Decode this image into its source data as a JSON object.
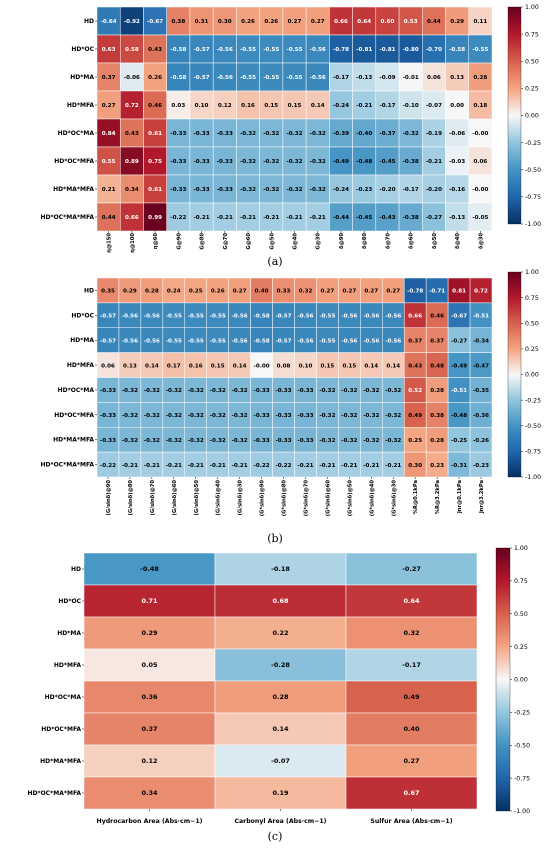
{
  "colorbar": {
    "min": -1.0,
    "max": 1.0,
    "ticks": [
      "1.00",
      "0.75",
      "0.50",
      "0.25",
      "0.00",
      "-0.25",
      "-0.50",
      "-0.75",
      "-1.00"
    ],
    "colormap": "RdBu_r",
    "colors": {
      "low": "#053061",
      "high": "#67001f",
      "mid": "#f7f7f7"
    }
  },
  "chart_data": [
    {
      "type": "heatmap",
      "caption": "(a)",
      "rows": [
        "HD",
        "HD*OC",
        "HD*MA",
        "HD*MFA",
        "HD*OC*MA",
        "HD*OC*MFA",
        "HD*MA*MFA",
        "HD*OC*MA*MFA"
      ],
      "columns": [
        "η@150",
        "η@100",
        "η@60",
        "G@90",
        "G@80",
        "G@70",
        "G@60",
        "G@50",
        "G@40",
        "G@30",
        "δ@90",
        "δ@80",
        "δ@70",
        "δ@60",
        "δ@50",
        "δ@40",
        "δ@30"
      ],
      "values": [
        [
          -0.64,
          -0.92,
          -0.67,
          0.38,
          0.31,
          0.3,
          0.26,
          0.26,
          0.27,
          0.27,
          0.66,
          0.64,
          0.6,
          0.53,
          0.44,
          0.29,
          0.11
        ],
        [
          0.63,
          0.58,
          0.43,
          -0.58,
          -0.57,
          -0.56,
          -0.55,
          -0.55,
          -0.55,
          -0.56,
          -0.78,
          -0.81,
          -0.81,
          -0.8,
          -0.7,
          -0.58,
          -0.55
        ],
        [
          0.37,
          -0.06,
          0.26,
          -0.58,
          -0.57,
          -0.56,
          -0.55,
          -0.55,
          -0.55,
          -0.56,
          -0.17,
          -0.13,
          -0.09,
          -0.01,
          0.06,
          0.13,
          0.28
        ],
        [
          0.27,
          0.72,
          0.46,
          0.03,
          0.1,
          0.12,
          0.16,
          0.15,
          0.15,
          0.14,
          -0.24,
          -0.21,
          -0.17,
          -0.1,
          -0.07,
          0.0,
          0.18
        ],
        [
          0.84,
          0.43,
          0.61,
          -0.33,
          -0.33,
          -0.33,
          -0.32,
          -0.32,
          -0.32,
          -0.32,
          -0.39,
          -0.4,
          -0.37,
          -0.32,
          -0.19,
          -0.06,
          -0.0
        ],
        [
          0.55,
          0.89,
          0.75,
          -0.33,
          -0.33,
          -0.33,
          -0.32,
          -0.32,
          -0.32,
          -0.32,
          -0.49,
          -0.48,
          -0.45,
          -0.38,
          -0.21,
          -0.03,
          0.06
        ],
        [
          0.21,
          0.34,
          0.61,
          -0.33,
          -0.33,
          -0.33,
          -0.32,
          -0.32,
          -0.32,
          -0.32,
          -0.24,
          -0.23,
          -0.2,
          -0.17,
          -0.2,
          -0.16,
          -0.0
        ],
        [
          0.44,
          0.66,
          0.99,
          -0.22,
          -0.21,
          -0.21,
          -0.21,
          -0.21,
          -0.21,
          -0.21,
          -0.44,
          -0.45,
          -0.43,
          -0.38,
          -0.27,
          -0.13,
          -0.05
        ]
      ]
    },
    {
      "type": "heatmap",
      "caption": "(b)",
      "rows": [
        "HD",
        "HD*OC",
        "HD*MA",
        "HD*MFA",
        "HD*OC*MA",
        "HD*OC*MFA",
        "HD*MA*MFA",
        "HD*OC*MA*MFA"
      ],
      "columns": [
        "(G/sinδ)@90",
        "(G/sinδ)@80",
        "(G/sinδ)@70",
        "(G/sinδ)@60",
        "(G/sinδ)@50",
        "(G/sinδ)@40",
        "(G/sinδ)@30",
        "(G*sinδ)@90",
        "(G*sinδ)@80",
        "(G*sinδ)@70",
        "(G*sinδ)@60",
        "(G*sinδ)@50",
        "(G*sinδ)@40",
        "(G*sinδ)@30",
        "%R@0.1kPa",
        "%R@3.2kPa",
        "Jnr@0.1kPa",
        "Jnr@3.2kPa"
      ],
      "values": [
        [
          0.35,
          0.29,
          0.28,
          0.24,
          0.25,
          0.26,
          0.27,
          0.4,
          0.33,
          0.32,
          0.27,
          0.27,
          0.27,
          0.27,
          -0.78,
          -0.71,
          0.81,
          0.72
        ],
        [
          -0.57,
          -0.56,
          -0.56,
          -0.55,
          -0.55,
          -0.55,
          -0.56,
          -0.58,
          -0.57,
          -0.56,
          -0.55,
          -0.56,
          -0.56,
          -0.56,
          0.66,
          0.46,
          -0.67,
          -0.51
        ],
        [
          -0.57,
          -0.56,
          -0.56,
          -0.55,
          -0.55,
          -0.55,
          -0.56,
          -0.58,
          -0.57,
          -0.56,
          -0.55,
          -0.56,
          -0.56,
          -0.56,
          0.37,
          0.37,
          -0.27,
          -0.34
        ],
        [
          0.06,
          0.13,
          0.14,
          0.17,
          0.16,
          0.15,
          0.14,
          -0.0,
          0.08,
          0.1,
          0.15,
          0.15,
          0.14,
          0.14,
          0.43,
          0.48,
          -0.49,
          -0.47
        ],
        [
          -0.33,
          -0.32,
          -0.32,
          -0.32,
          -0.32,
          -0.32,
          -0.32,
          -0.33,
          -0.33,
          -0.33,
          -0.32,
          -0.32,
          -0.32,
          -0.32,
          0.52,
          0.28,
          -0.51,
          -0.35
        ],
        [
          -0.33,
          -0.32,
          -0.32,
          -0.32,
          -0.32,
          -0.32,
          -0.32,
          -0.33,
          -0.33,
          -0.33,
          -0.32,
          -0.32,
          -0.32,
          -0.32,
          0.49,
          0.38,
          -0.48,
          -0.36
        ],
        [
          -0.33,
          -0.32,
          -0.32,
          -0.32,
          -0.32,
          -0.32,
          -0.32,
          -0.33,
          -0.33,
          -0.33,
          -0.32,
          -0.32,
          -0.32,
          -0.32,
          0.25,
          0.28,
          -0.25,
          -0.26
        ],
        [
          -0.22,
          -0.21,
          -0.21,
          -0.21,
          -0.21,
          -0.21,
          -0.21,
          -0.22,
          -0.22,
          -0.21,
          -0.21,
          -0.21,
          -0.21,
          -0.21,
          0.3,
          0.23,
          -0.31,
          -0.23
        ]
      ]
    },
    {
      "type": "heatmap",
      "caption": "(c)",
      "rows": [
        "HD",
        "HD*OC",
        "HD*MA",
        "HD*MFA",
        "HD*OC*MA",
        "HD*OC*MFA",
        "HD*MA*MFA",
        "HD*OC*MA*MFA"
      ],
      "columns": [
        "Hydrocarbon Area (Abs·cm−1)",
        "Carbonyl Area (Abs·cm−1)",
        "Sulfur Area (Abs·cm−1)"
      ],
      "values": [
        [
          -0.48,
          -0.18,
          -0.27
        ],
        [
          0.71,
          0.68,
          0.64
        ],
        [
          0.29,
          0.22,
          0.32
        ],
        [
          0.05,
          -0.28,
          -0.17
        ],
        [
          0.36,
          0.28,
          0.49
        ],
        [
          0.37,
          0.14,
          0.4
        ],
        [
          0.12,
          -0.07,
          0.27
        ],
        [
          0.34,
          0.19,
          0.67
        ]
      ]
    }
  ]
}
